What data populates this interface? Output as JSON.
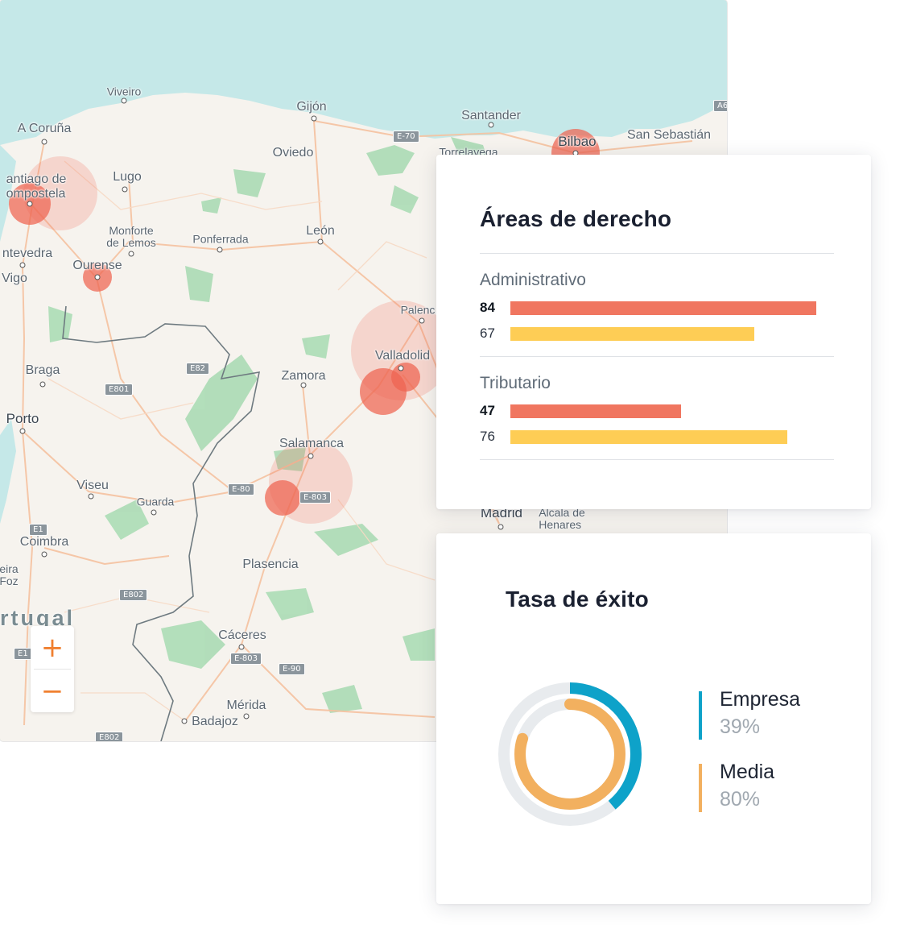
{
  "map": {
    "cities": [
      {
        "name": "Viveiro",
        "cls": "small"
      },
      {
        "name": "Gijón",
        "cls": ""
      },
      {
        "name": "Santander",
        "cls": ""
      },
      {
        "name": "A Coruña",
        "cls": ""
      },
      {
        "name": "Oviedo",
        "cls": ""
      },
      {
        "name": "Torrelavega",
        "cls": "small"
      },
      {
        "name": "Bilbao",
        "cls": "big"
      },
      {
        "name": "San Sebastián",
        "cls": ""
      },
      {
        "name": "antiago de\nompostela",
        "cls": ""
      },
      {
        "name": "Lugo",
        "cls": ""
      },
      {
        "name": "Monforte\nde Lemos",
        "cls": "small"
      },
      {
        "name": "Ponferrada",
        "cls": ""
      },
      {
        "name": "León",
        "cls": ""
      },
      {
        "name": "ntevedra",
        "cls": ""
      },
      {
        "name": "Ourense",
        "cls": ""
      },
      {
        "name": "Vigo",
        "cls": ""
      },
      {
        "name": "Palenc",
        "cls": "small"
      },
      {
        "name": "Valladolid",
        "cls": ""
      },
      {
        "name": "Braga",
        "cls": ""
      },
      {
        "name": "Zamora",
        "cls": ""
      },
      {
        "name": "Porto",
        "cls": "big"
      },
      {
        "name": "Salamanca",
        "cls": ""
      },
      {
        "name": "Viseu",
        "cls": ""
      },
      {
        "name": "Guarda",
        "cls": "small"
      },
      {
        "name": "Madrid",
        "cls": "big"
      },
      {
        "name": "Alcala de\nHenares",
        "cls": "small"
      },
      {
        "name": "Coimbra",
        "cls": ""
      },
      {
        "name": "eira\nFoz",
        "cls": "small"
      },
      {
        "name": "Plasencia",
        "cls": ""
      },
      {
        "name": "Cáceres",
        "cls": ""
      },
      {
        "name": "Mérida",
        "cls": ""
      },
      {
        "name": "Badajoz",
        "cls": ""
      },
      {
        "name": "rtugal",
        "cls": "country"
      }
    ],
    "roads": [
      "E-70",
      "A6",
      "E82",
      "E801",
      "E-80",
      "E-803",
      "E1",
      "E802",
      "E1",
      "E-803",
      "E-90",
      "E802"
    ],
    "zoom": {
      "in_icon": "plus-icon",
      "out_icon": "minus-icon",
      "in_symbol": "+",
      "out_symbol": "−"
    }
  },
  "areas_card": {
    "title": "Áreas de derecho",
    "groups": [
      {
        "label": "Administrativo",
        "bars": [
          {
            "value": 84,
            "color": "#f07660",
            "bold": true
          },
          {
            "value": 67,
            "color": "#fecd55",
            "bold": false
          }
        ]
      },
      {
        "label": "Tributario",
        "bars": [
          {
            "value": 47,
            "color": "#f07660",
            "bold": true
          },
          {
            "value": 76,
            "color": "#fecd55",
            "bold": false
          }
        ]
      }
    ]
  },
  "rate_card": {
    "title": "Tasa de éxito",
    "items": [
      {
        "label": "Empresa",
        "percent": "39%",
        "value": 39,
        "color": "#0ea2c9"
      },
      {
        "label": "Media",
        "percent": "80%",
        "value": 80,
        "color": "#f2b05f"
      }
    ]
  },
  "chart_data": {
    "type": "bar",
    "title": "Áreas de derecho",
    "categories": [
      "Administrativo",
      "Tributario"
    ],
    "series": [
      {
        "values": [
          84,
          47
        ]
      },
      {
        "values": [
          67,
          76
        ]
      }
    ],
    "xlabel": "",
    "ylabel": ""
  }
}
